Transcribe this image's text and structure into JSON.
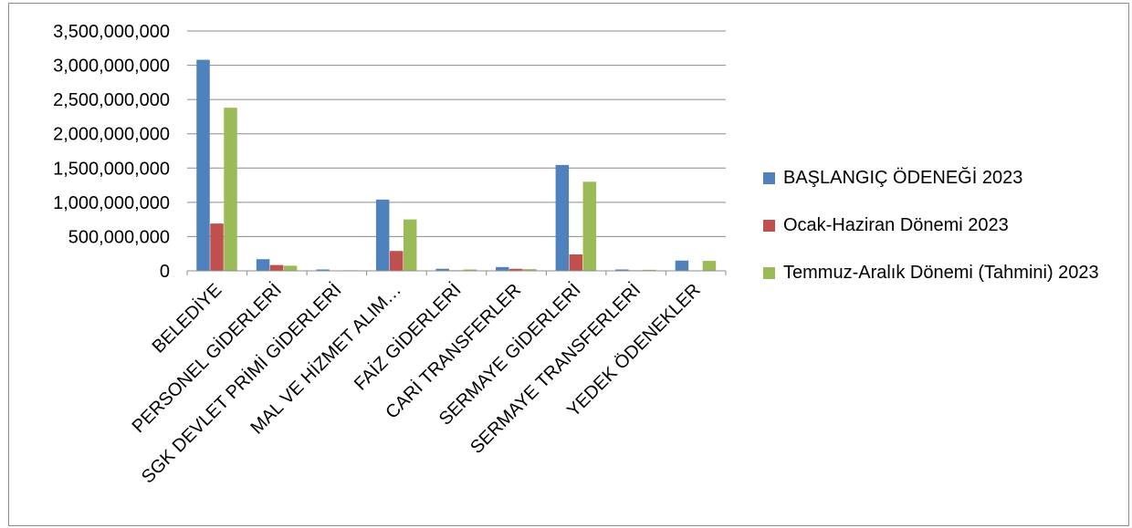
{
  "chart_data": {
    "type": "bar",
    "categories": [
      "BELEDİYE",
      "PERSONEL GİDERLERİ",
      "SGK DEVLET PRİMİ GİDERLERİ",
      "MAL VE HİZMET ALIM…",
      "FAİZ GİDERLERİ",
      "CARİ TRANSFERLER",
      "SERMAYE GİDERLERİ",
      "SERMAYE TRANSFERLERİ",
      "YEDEK ÖDENEKLER"
    ],
    "series": [
      {
        "name": "BAŞLANGIÇ ÖDENEĞİ 2023",
        "color": "#4f81bd",
        "values": [
          3080000000,
          170000000,
          20000000,
          1040000000,
          30000000,
          55000000,
          1545000000,
          20000000,
          150000000
        ]
      },
      {
        "name": "Ocak-Haziran Dönemi 2023",
        "color": "#c0504d",
        "values": [
          690000000,
          85000000,
          5000000,
          290000000,
          8000000,
          30000000,
          240000000,
          8000000,
          5000000
        ]
      },
      {
        "name": "Temmuz-Aralık Dönemi (Tahmini) 2023",
        "color": "#9bbb59",
        "values": [
          2380000000,
          75000000,
          8000000,
          750000000,
          20000000,
          25000000,
          1300000000,
          15000000,
          145000000
        ]
      }
    ],
    "yticks": [
      "0",
      "500,000,000",
      "1,000,000,000",
      "1,500,000,000",
      "2,000,000,000",
      "2,500,000,000",
      "3,000,000,000",
      "3,500,000,000"
    ],
    "ylim": [
      0,
      3500000000
    ],
    "grid": true,
    "legend_position": "right"
  }
}
